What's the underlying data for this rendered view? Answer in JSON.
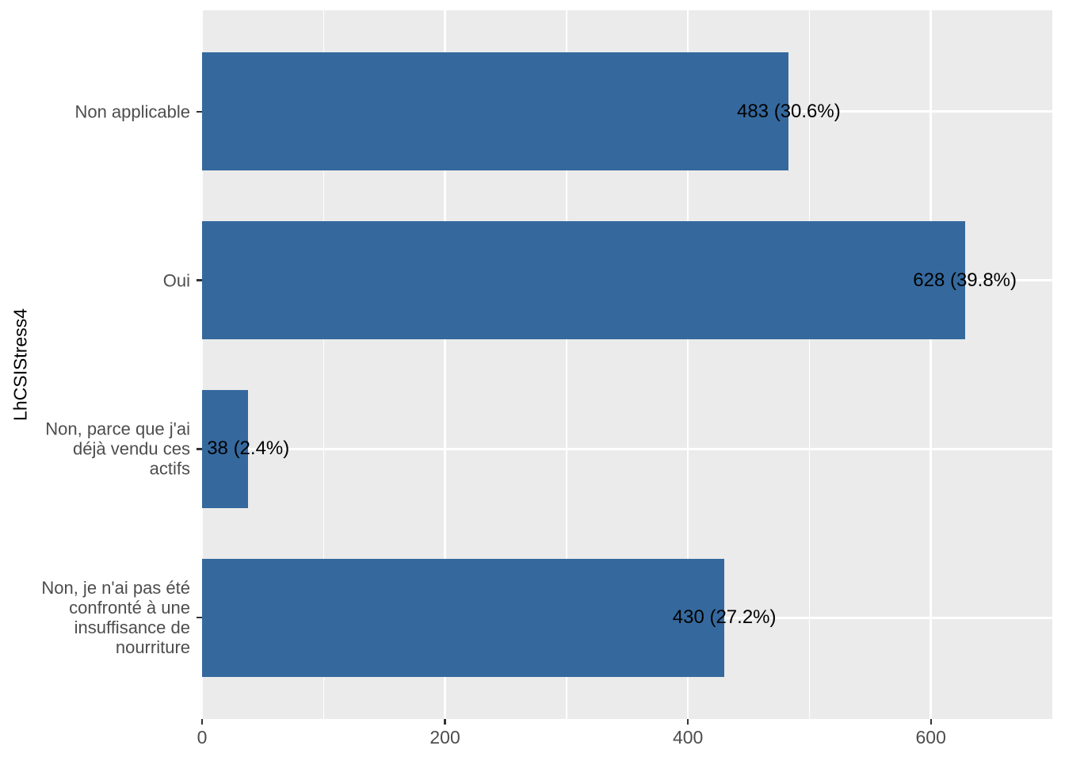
{
  "chart_data": {
    "type": "bar",
    "orientation": "horizontal",
    "title": "",
    "xlabel": "",
    "ylabel": "LhCSIStress4",
    "legend": null,
    "grid": true,
    "categories": [
      {
        "label": "Non applicable",
        "label_lines": [
          "Non applicable"
        ],
        "value": 483,
        "percent": "30.6%",
        "annotation": "483 (30.6%)"
      },
      {
        "label": "Oui",
        "label_lines": [
          "Oui"
        ],
        "value": 628,
        "percent": "39.8%",
        "annotation": "628 (39.8%)"
      },
      {
        "label": "Non, parce que j'ai déjà vendu ces actifs",
        "label_lines": [
          "Non, parce que j'ai",
          "déjà vendu ces",
          "actifs"
        ],
        "value": 38,
        "percent": "2.4%",
        "annotation": "38 (2.4%)"
      },
      {
        "label": "Non, je n'ai pas été confronté à une insuffisance de nourriture",
        "label_lines": [
          "Non, je n'ai pas été",
          "confronté à une",
          "insuffisance de",
          "nourriture"
        ],
        "value": 430,
        "percent": "27.2%",
        "annotation": "430 (27.2%)"
      }
    ],
    "x_axis": {
      "major_ticks": [
        0,
        200,
        400,
        600
      ],
      "tick_labels": [
        "0",
        "200",
        "400",
        "600"
      ],
      "minor_gridlines": [
        100,
        300,
        500
      ],
      "lim": [
        0,
        700
      ]
    },
    "colors": {
      "bar_fill": "#35699E",
      "panel_background": "#EBEBEB",
      "gridline": "#FFFFFF",
      "axis_text": "#4D4D4D",
      "value_label_text": "#000000",
      "axis_title_text": "#000000",
      "tick_mark": "#333333",
      "figure_background": "#FFFFFF"
    }
  }
}
